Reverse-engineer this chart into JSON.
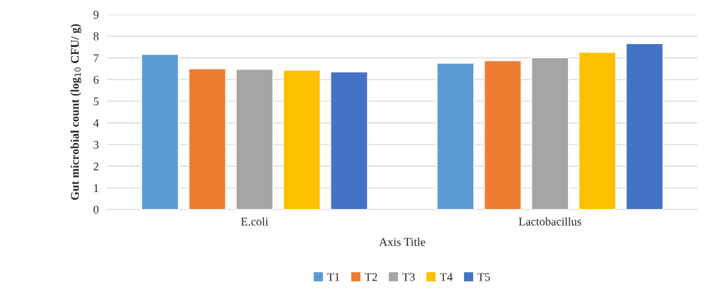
{
  "chart_data": {
    "type": "bar",
    "xlabel": "Axis Title",
    "ylabel": "Gut microbial count (log$_{10}$ CFU/ g)",
    "categories": [
      "E.coli",
      "Lactobacillus"
    ],
    "series": [
      {
        "name": "T1",
        "color": "#5b9bd5",
        "values": [
          7.16,
          6.76
        ]
      },
      {
        "name": "T2",
        "color": "#ed7d31",
        "values": [
          6.5,
          6.87
        ]
      },
      {
        "name": "T3",
        "color": "#a5a5a5",
        "values": [
          6.47,
          7.01
        ]
      },
      {
        "name": "T4",
        "color": "#ffc000",
        "values": [
          6.43,
          7.26
        ]
      },
      {
        "name": "T5",
        "color": "#4472c4",
        "values": [
          6.35,
          7.66
        ]
      }
    ],
    "ylim": [
      0,
      9
    ],
    "yticks": [
      0,
      1,
      2,
      3,
      4,
      5,
      6,
      7,
      8,
      9
    ],
    "grid": "y",
    "legend": "bottom"
  }
}
